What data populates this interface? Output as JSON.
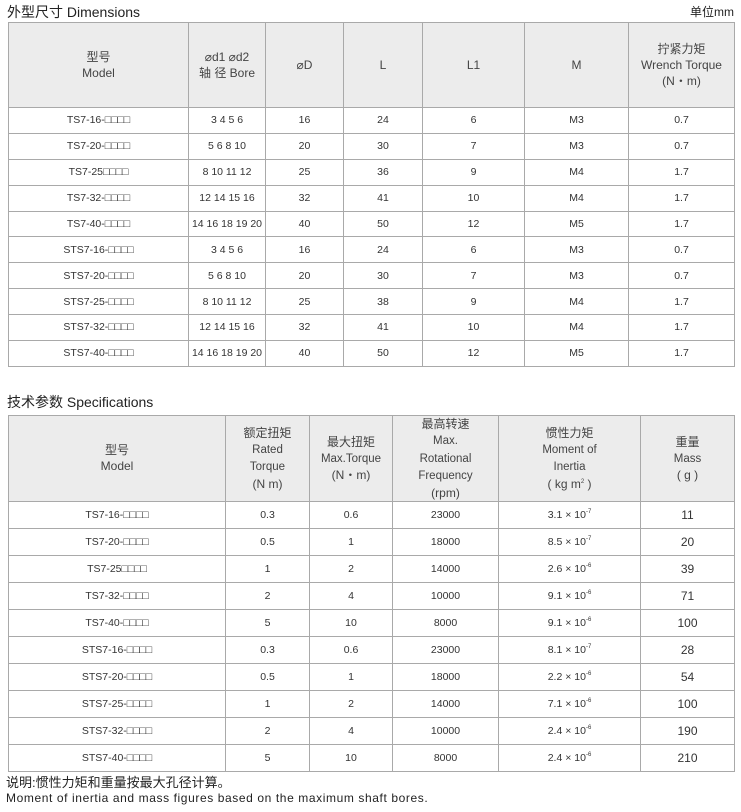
{
  "dimensions": {
    "title": "外型尺寸 Dimensions",
    "unit": "单位mm",
    "headers": {
      "model_cn": "型号",
      "model_en": "Model",
      "bore_top": "⌀d1 ⌀d2",
      "bore_bottom": "轴 径 Bore",
      "D": "⌀D",
      "L": "L",
      "L1": "L1",
      "M": "M",
      "torque_cn": "拧紧力矩",
      "torque_en": "Wrench Torque",
      "torque_unit": "(N・m)"
    },
    "rows": [
      {
        "model": "TS7-16-□□□□",
        "bore": "3 4 5 6",
        "D": "16",
        "L": "24",
        "L1": "6",
        "M": "M3",
        "torque": "0.7"
      },
      {
        "model": "TS7-20-□□□□",
        "bore": "5 6 8 10",
        "D": "20",
        "L": "30",
        "L1": "7",
        "M": "M3",
        "torque": "0.7"
      },
      {
        "model": "TS7-25□□□□",
        "bore": "8 10 11 12",
        "D": "25",
        "L": "36",
        "L1": "9",
        "M": "M4",
        "torque": "1.7"
      },
      {
        "model": "TS7-32-□□□□",
        "bore": "12 14 15 16",
        "D": "32",
        "L": "41",
        "L1": "10",
        "M": "M4",
        "torque": "1.7"
      },
      {
        "model": "TS7-40-□□□□",
        "bore": "14 16 18 19 20",
        "D": "40",
        "L": "50",
        "L1": "12",
        "M": "M5",
        "torque": "1.7"
      },
      {
        "model": "STS7-16-□□□□",
        "bore": "3 4 5 6",
        "D": "16",
        "L": "24",
        "L1": "6",
        "M": "M3",
        "torque": "0.7"
      },
      {
        "model": "STS7-20-□□□□",
        "bore": "5 6 8 10",
        "D": "20",
        "L": "30",
        "L1": "7",
        "M": "M3",
        "torque": "0.7"
      },
      {
        "model": "STS7-25-□□□□",
        "bore": "8 10 11 12",
        "D": "25",
        "L": "38",
        "L1": "9",
        "M": "M4",
        "torque": "1.7"
      },
      {
        "model": "STS7-32-□□□□",
        "bore": "12 14 15 16",
        "D": "32",
        "L": "41",
        "L1": "10",
        "M": "M4",
        "torque": "1.7"
      },
      {
        "model": "STS7-40-□□□□",
        "bore": "14 16 18 19 20",
        "D": "40",
        "L": "50",
        "L1": "12",
        "M": "M5",
        "torque": "1.7"
      }
    ]
  },
  "specifications": {
    "title": "技术参数 Specifications",
    "headers": {
      "model_cn": "型号",
      "model_en": "Model",
      "rated_cn": "额定扭矩",
      "rated_en1": "Rated",
      "rated_en2": "Torque",
      "rated_unit": "(N  m)",
      "max_cn": "最大扭矩",
      "max_en": "Max.Torque",
      "max_unit": "(N・m)",
      "speed_cn": "最高转速",
      "speed_en1": "Max.",
      "speed_en2": "Rotational",
      "speed_en3": "Frequency",
      "speed_unit": "(rpm)",
      "inertia_cn": "惯性力矩",
      "inertia_en1": "Moment of",
      "inertia_en2": "Inertia",
      "inertia_unit": "( kg  m",
      "inertia_unit_sup": "2",
      "inertia_unit_end": " )",
      "mass_cn": "重量",
      "mass_en": "Mass",
      "mass_unit": "( g )"
    },
    "rows": [
      {
        "model": "TS7-16-□□□□",
        "rated": "0.3",
        "max": "0.6",
        "speed": "23000",
        "inertia": "3.1 × 10",
        "exp": "-7",
        "mass": "11"
      },
      {
        "model": "TS7-20-□□□□",
        "rated": "0.5",
        "max": "1",
        "speed": "18000",
        "inertia": "8.5 × 10",
        "exp": "-7",
        "mass": "20"
      },
      {
        "model": "TS7-25□□□□",
        "rated": "1",
        "max": "2",
        "speed": "14000",
        "inertia": "2.6 × 10",
        "exp": "-6",
        "mass": "39"
      },
      {
        "model": "TS7-32-□□□□",
        "rated": "2",
        "max": "4",
        "speed": "10000",
        "inertia": "9.1 × 10",
        "exp": "-6",
        "mass": "71"
      },
      {
        "model": "TS7-40-□□□□",
        "rated": "5",
        "max": "10",
        "speed": "8000",
        "inertia": "9.1 × 10",
        "exp": "-6",
        "mass": "100"
      },
      {
        "model": "STS7-16-□□□□",
        "rated": "0.3",
        "max": "0.6",
        "speed": "23000",
        "inertia": "8.1 × 10",
        "exp": "-7",
        "mass": "28"
      },
      {
        "model": "STS7-20-□□□□",
        "rated": "0.5",
        "max": "1",
        "speed": "18000",
        "inertia": "2.2 × 10",
        "exp": "-6",
        "mass": "54"
      },
      {
        "model": "STS7-25-□□□□",
        "rated": "1",
        "max": "2",
        "speed": "14000",
        "inertia": "7.1 × 10",
        "exp": "-6",
        "mass": "100"
      },
      {
        "model": "STS7-32-□□□□",
        "rated": "2",
        "max": "4",
        "speed": "10000",
        "inertia": "2.4 × 10",
        "exp": "-6",
        "mass": "190"
      },
      {
        "model": "STS7-40-□□□□",
        "rated": "5",
        "max": "10",
        "speed": "8000",
        "inertia": "2.4 × 10",
        "exp": "-6",
        "mass": "210"
      }
    ]
  },
  "notes": {
    "cn": "说明:惯性力矩和重量按最大孔径计算。",
    "en": "Moment of inertia and mass figures based on the maximum shaft bores."
  }
}
